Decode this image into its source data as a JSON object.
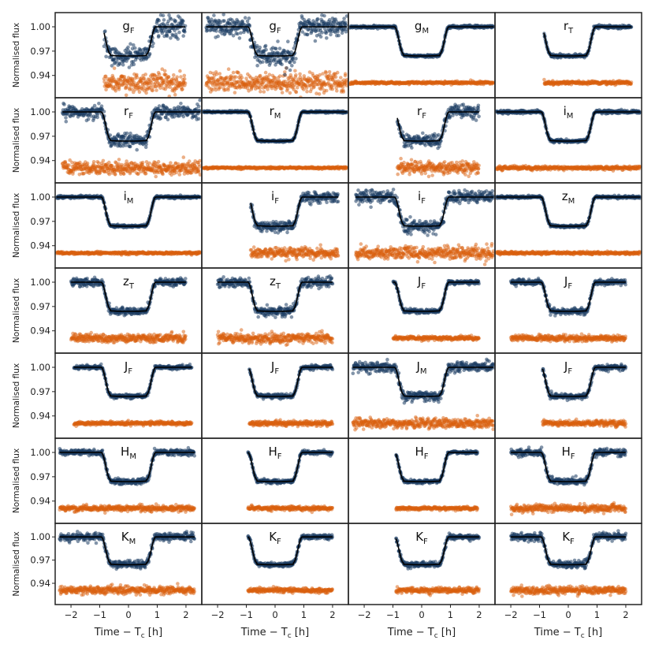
{
  "figure": {
    "ylabel": "Normalised flux",
    "xlabel_main": "Time − T",
    "xlabel_sub": "c",
    "xlabel_unit": " [h]",
    "xticks": [
      -2,
      -1,
      0,
      1,
      2
    ],
    "xtick_labels": [
      "−2",
      "−1",
      "0",
      "1",
      "2"
    ],
    "yticks": [
      1.0,
      0.97,
      0.94
    ],
    "ytick_labels": [
      "1.00",
      "0.97",
      "0.94"
    ],
    "xlim": [
      -2.55,
      2.55
    ],
    "ylim": [
      0.9125,
      1.0175
    ],
    "colors": {
      "data": "#1c3d63",
      "model": "#000000",
      "residuals": "#d95f0e"
    }
  },
  "chart_data": {
    "type": "scatter",
    "description_of_series": "Each panel: transit light curve (flux vs time) with model and offset residuals",
    "transit": {
      "depth": 0.036,
      "half_duration_h": 0.95,
      "ingress_h": 0.32,
      "residual_offset_level": 0.931
    },
    "panels": [
      {
        "band": "g",
        "inst": "F",
        "tmin": -0.85,
        "tmax": 1.98,
        "noise": 0.006
      },
      {
        "band": "g",
        "inst": "F",
        "tmin": -2.4,
        "tmax": 2.5,
        "noise": 0.006
      },
      {
        "band": "g",
        "inst": "M",
        "tmin": -2.5,
        "tmax": 2.5,
        "noise": 0.0008
      },
      {
        "band": "r",
        "inst": "T",
        "tmin": -0.85,
        "tmax": 2.2,
        "noise": 0.001
      },
      {
        "band": "r",
        "inst": "F",
        "tmin": -2.3,
        "tmax": 2.5,
        "noise": 0.004
      },
      {
        "band": "r",
        "inst": "M",
        "tmin": -2.5,
        "tmax": 2.5,
        "noise": 0.0006
      },
      {
        "band": "r",
        "inst": "F",
        "tmin": -0.85,
        "tmax": 2.0,
        "noise": 0.004
      },
      {
        "band": "i",
        "inst": "M",
        "tmin": -2.5,
        "tmax": 2.5,
        "noise": 0.001
      },
      {
        "band": "i",
        "inst": "M",
        "tmin": -2.5,
        "tmax": 2.5,
        "noise": 0.0008
      },
      {
        "band": "i",
        "inst": "F",
        "tmin": -0.85,
        "tmax": 2.2,
        "noise": 0.003
      },
      {
        "band": "i",
        "inst": "F",
        "tmin": -2.3,
        "tmax": 2.5,
        "noise": 0.004
      },
      {
        "band": "z",
        "inst": "M",
        "tmin": -2.5,
        "tmax": 2.5,
        "noise": 0.0008
      },
      {
        "band": "z",
        "inst": "T",
        "tmin": -2.0,
        "tmax": 2.0,
        "noise": 0.0025
      },
      {
        "band": "z",
        "inst": "T",
        "tmin": -2.0,
        "tmax": 2.0,
        "noise": 0.003
      },
      {
        "band": "J",
        "inst": "F",
        "tmin": -1.0,
        "tmax": 2.0,
        "noise": 0.0012
      },
      {
        "band": "J",
        "inst": "F",
        "tmin": -2.0,
        "tmax": 2.0,
        "noise": 0.0018
      },
      {
        "band": "J",
        "inst": "F",
        "tmin": -1.9,
        "tmax": 2.2,
        "noise": 0.0012
      },
      {
        "band": "J",
        "inst": "F",
        "tmin": -0.9,
        "tmax": 2.0,
        "noise": 0.0015
      },
      {
        "band": "J",
        "inst": "M",
        "tmin": -2.4,
        "tmax": 2.5,
        "noise": 0.003
      },
      {
        "band": "J",
        "inst": "F",
        "tmin": -0.9,
        "tmax": 2.0,
        "noise": 0.0018
      },
      {
        "band": "H",
        "inst": "M",
        "tmin": -2.4,
        "tmax": 2.3,
        "noise": 0.0018
      },
      {
        "band": "H",
        "inst": "F",
        "tmin": -0.95,
        "tmax": 2.0,
        "noise": 0.0012
      },
      {
        "band": "H",
        "inst": "F",
        "tmin": -0.9,
        "tmax": 1.95,
        "noise": 0.001
      },
      {
        "band": "H",
        "inst": "F",
        "tmin": -2.0,
        "tmax": 2.0,
        "noise": 0.0022
      },
      {
        "band": "K",
        "inst": "M",
        "tmin": -2.4,
        "tmax": 2.3,
        "noise": 0.0025
      },
      {
        "band": "K",
        "inst": "F",
        "tmin": -0.95,
        "tmax": 2.0,
        "noise": 0.0015
      },
      {
        "band": "K",
        "inst": "F",
        "tmin": -0.9,
        "tmax": 2.0,
        "noise": 0.0018
      },
      {
        "band": "K",
        "inst": "F",
        "tmin": -2.0,
        "tmax": 2.0,
        "noise": 0.0025
      }
    ]
  }
}
